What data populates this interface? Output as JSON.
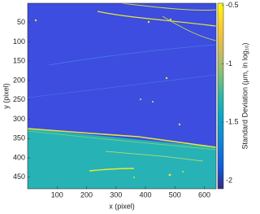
{
  "chart_data": {
    "type": "heatmap",
    "xlabel": "x (pixel)",
    "ylabel": "y (pixel)",
    "colorbar_label": "Standard Deviation (μm, in log₁₀)",
    "xlim": [
      0,
      640
    ],
    "xticks": [
      100,
      200,
      300,
      400,
      500,
      600
    ],
    "ylim": [
      0,
      480
    ],
    "yticks": [
      50,
      100,
      150,
      200,
      250,
      300,
      350,
      400,
      450
    ],
    "y_direction": "reverse",
    "clim": [
      -2.07,
      -0.48
    ],
    "cticks": [
      -0.5,
      -1,
      -1.5,
      -2
    ],
    "colormap": "parula"
  }
}
